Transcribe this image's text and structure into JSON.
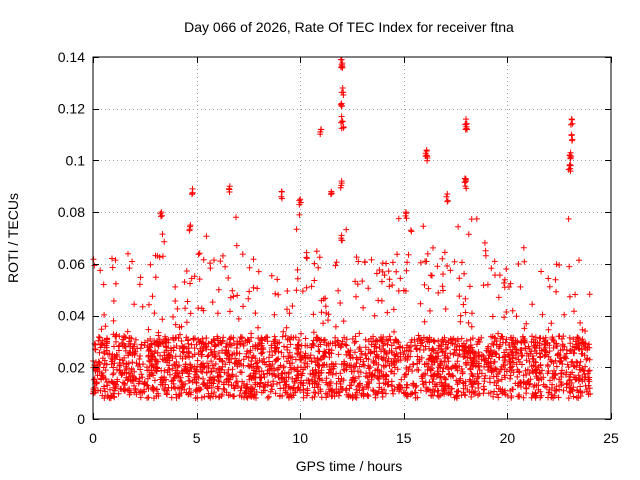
{
  "chart_data": {
    "type": "scatter",
    "title": "Day 066 of 2026, Rate Of TEC Index for receiver ftna",
    "xlabel": "GPS time / hours",
    "ylabel": "ROTI / TECUs",
    "xlim": [
      0,
      25
    ],
    "ylim": [
      0,
      0.14
    ],
    "xticks": [
      0,
      5,
      10,
      15,
      20,
      25
    ],
    "yticks": [
      0,
      0.02,
      0.04,
      0.06,
      0.08,
      0.1,
      0.12,
      0.14
    ],
    "xtick_labels": [
      "0",
      "5",
      "10",
      "15",
      "20",
      "25"
    ],
    "ytick_labels": [
      "0",
      "0.02",
      "0.04",
      "0.06",
      "0.08",
      "0.1",
      "0.12",
      "0.14"
    ],
    "grid": true,
    "marker": "+",
    "color": "#ff0000",
    "series": [
      {
        "name": "ROTI",
        "x_range": [
          0,
          24
        ],
        "baseline_band": [
          0.008,
          0.032
        ],
        "notable_points": [
          {
            "x": 4.8,
            "y": 0.089
          },
          {
            "x": 6.6,
            "y": 0.09
          },
          {
            "x": 9.1,
            "y": 0.088
          },
          {
            "x": 10.0,
            "y": 0.085
          },
          {
            "x": 11.0,
            "y": 0.112
          },
          {
            "x": 11.5,
            "y": 0.088
          },
          {
            "x": 12.0,
            "y": 0.139
          },
          {
            "x": 12.0,
            "y": 0.137
          },
          {
            "x": 12.05,
            "y": 0.128
          },
          {
            "x": 12.0,
            "y": 0.122
          },
          {
            "x": 12.0,
            "y": 0.117
          },
          {
            "x": 12.05,
            "y": 0.115
          },
          {
            "x": 12.0,
            "y": 0.092
          },
          {
            "x": 16.1,
            "y": 0.104
          },
          {
            "x": 16.1,
            "y": 0.102
          },
          {
            "x": 17.1,
            "y": 0.087
          },
          {
            "x": 18.0,
            "y": 0.116
          },
          {
            "x": 18.0,
            "y": 0.114
          },
          {
            "x": 17.95,
            "y": 0.093
          },
          {
            "x": 18.0,
            "y": 0.092
          },
          {
            "x": 23.1,
            "y": 0.116
          },
          {
            "x": 23.1,
            "y": 0.11
          },
          {
            "x": 23.05,
            "y": 0.103
          },
          {
            "x": 23.0,
            "y": 0.098
          },
          {
            "x": 23.05,
            "y": 0.101
          },
          {
            "x": 15.1,
            "y": 0.08
          },
          {
            "x": 3.3,
            "y": 0.08
          },
          {
            "x": 4.7,
            "y": 0.075
          },
          {
            "x": 12.0,
            "y": 0.071
          }
        ]
      }
    ]
  }
}
